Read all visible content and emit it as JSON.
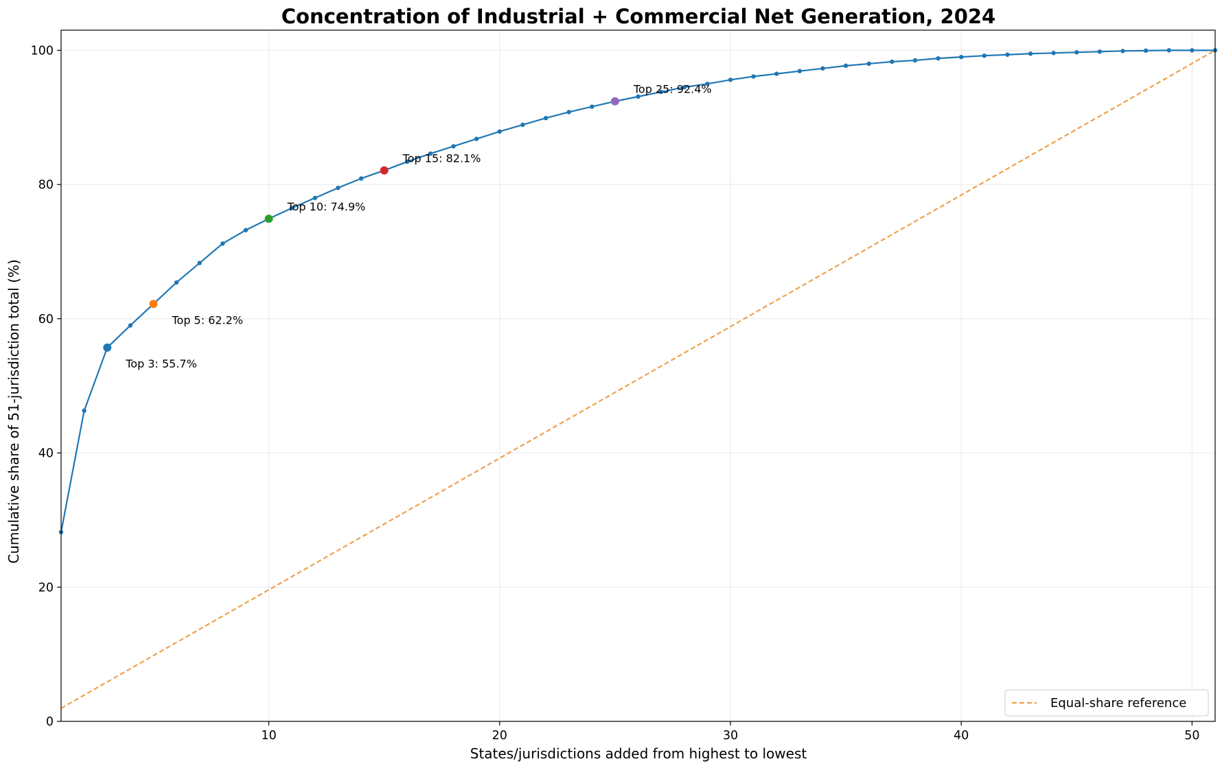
{
  "chart_data": {
    "type": "line",
    "title": "Concentration of Industrial + Commercial Net Generation, 2024",
    "xlabel": "States/jurisdictions added from highest to lowest",
    "ylabel": "Cumulative share of 51-jurisdiction total (%)",
    "xlim": [
      1,
      51
    ],
    "ylim": [
      0,
      103
    ],
    "xticks": [
      10,
      20,
      30,
      40,
      50
    ],
    "yticks": [
      0,
      20,
      40,
      60,
      80,
      100
    ],
    "grid": true,
    "legend": {
      "placement": "lower-right",
      "entries": [
        "Equal-share reference"
      ]
    },
    "series": [
      {
        "name": "Cumulative share",
        "color": "#1f77b4",
        "x": [
          1,
          2,
          3,
          4,
          5,
          6,
          7,
          8,
          9,
          10,
          11,
          12,
          13,
          14,
          15,
          16,
          17,
          18,
          19,
          20,
          21,
          22,
          23,
          24,
          25,
          26,
          27,
          28,
          29,
          30,
          31,
          32,
          33,
          34,
          35,
          36,
          37,
          38,
          39,
          40,
          41,
          42,
          43,
          44,
          45,
          46,
          47,
          48,
          49,
          50,
          51
        ],
        "y": [
          28.2,
          46.3,
          55.7,
          59.0,
          62.2,
          65.4,
          68.3,
          71.2,
          73.2,
          74.9,
          76.5,
          78.0,
          79.5,
          80.9,
          82.1,
          83.4,
          84.6,
          85.7,
          86.8,
          87.9,
          88.9,
          89.9,
          90.8,
          91.6,
          92.4,
          93.1,
          93.8,
          94.5,
          95.0,
          95.6,
          96.1,
          96.5,
          96.9,
          97.3,
          97.7,
          98.0,
          98.3,
          98.5,
          98.8,
          99.0,
          99.2,
          99.35,
          99.5,
          99.6,
          99.7,
          99.8,
          99.9,
          99.95,
          100.0,
          100.0,
          100.0
        ]
      },
      {
        "name": "Equal-share reference",
        "color": "#f0a04b",
        "style": "dashed",
        "x": [
          1,
          51
        ],
        "y": [
          1.96,
          100.0
        ]
      }
    ],
    "highlights": [
      {
        "x": 3,
        "y": 55.7,
        "label": "Top 3: 55.7%",
        "color": "#1f77b4"
      },
      {
        "x": 5,
        "y": 62.2,
        "label": "Top 5: 62.2%",
        "color": "#ff7f0e"
      },
      {
        "x": 10,
        "y": 74.9,
        "label": "Top 10: 74.9%",
        "color": "#2ca02c"
      },
      {
        "x": 15,
        "y": 82.1,
        "label": "Top 15: 82.1%",
        "color": "#d62728"
      },
      {
        "x": 25,
        "y": 92.4,
        "label": "Top 25: 92.4%",
        "color": "#9467bd"
      }
    ]
  }
}
